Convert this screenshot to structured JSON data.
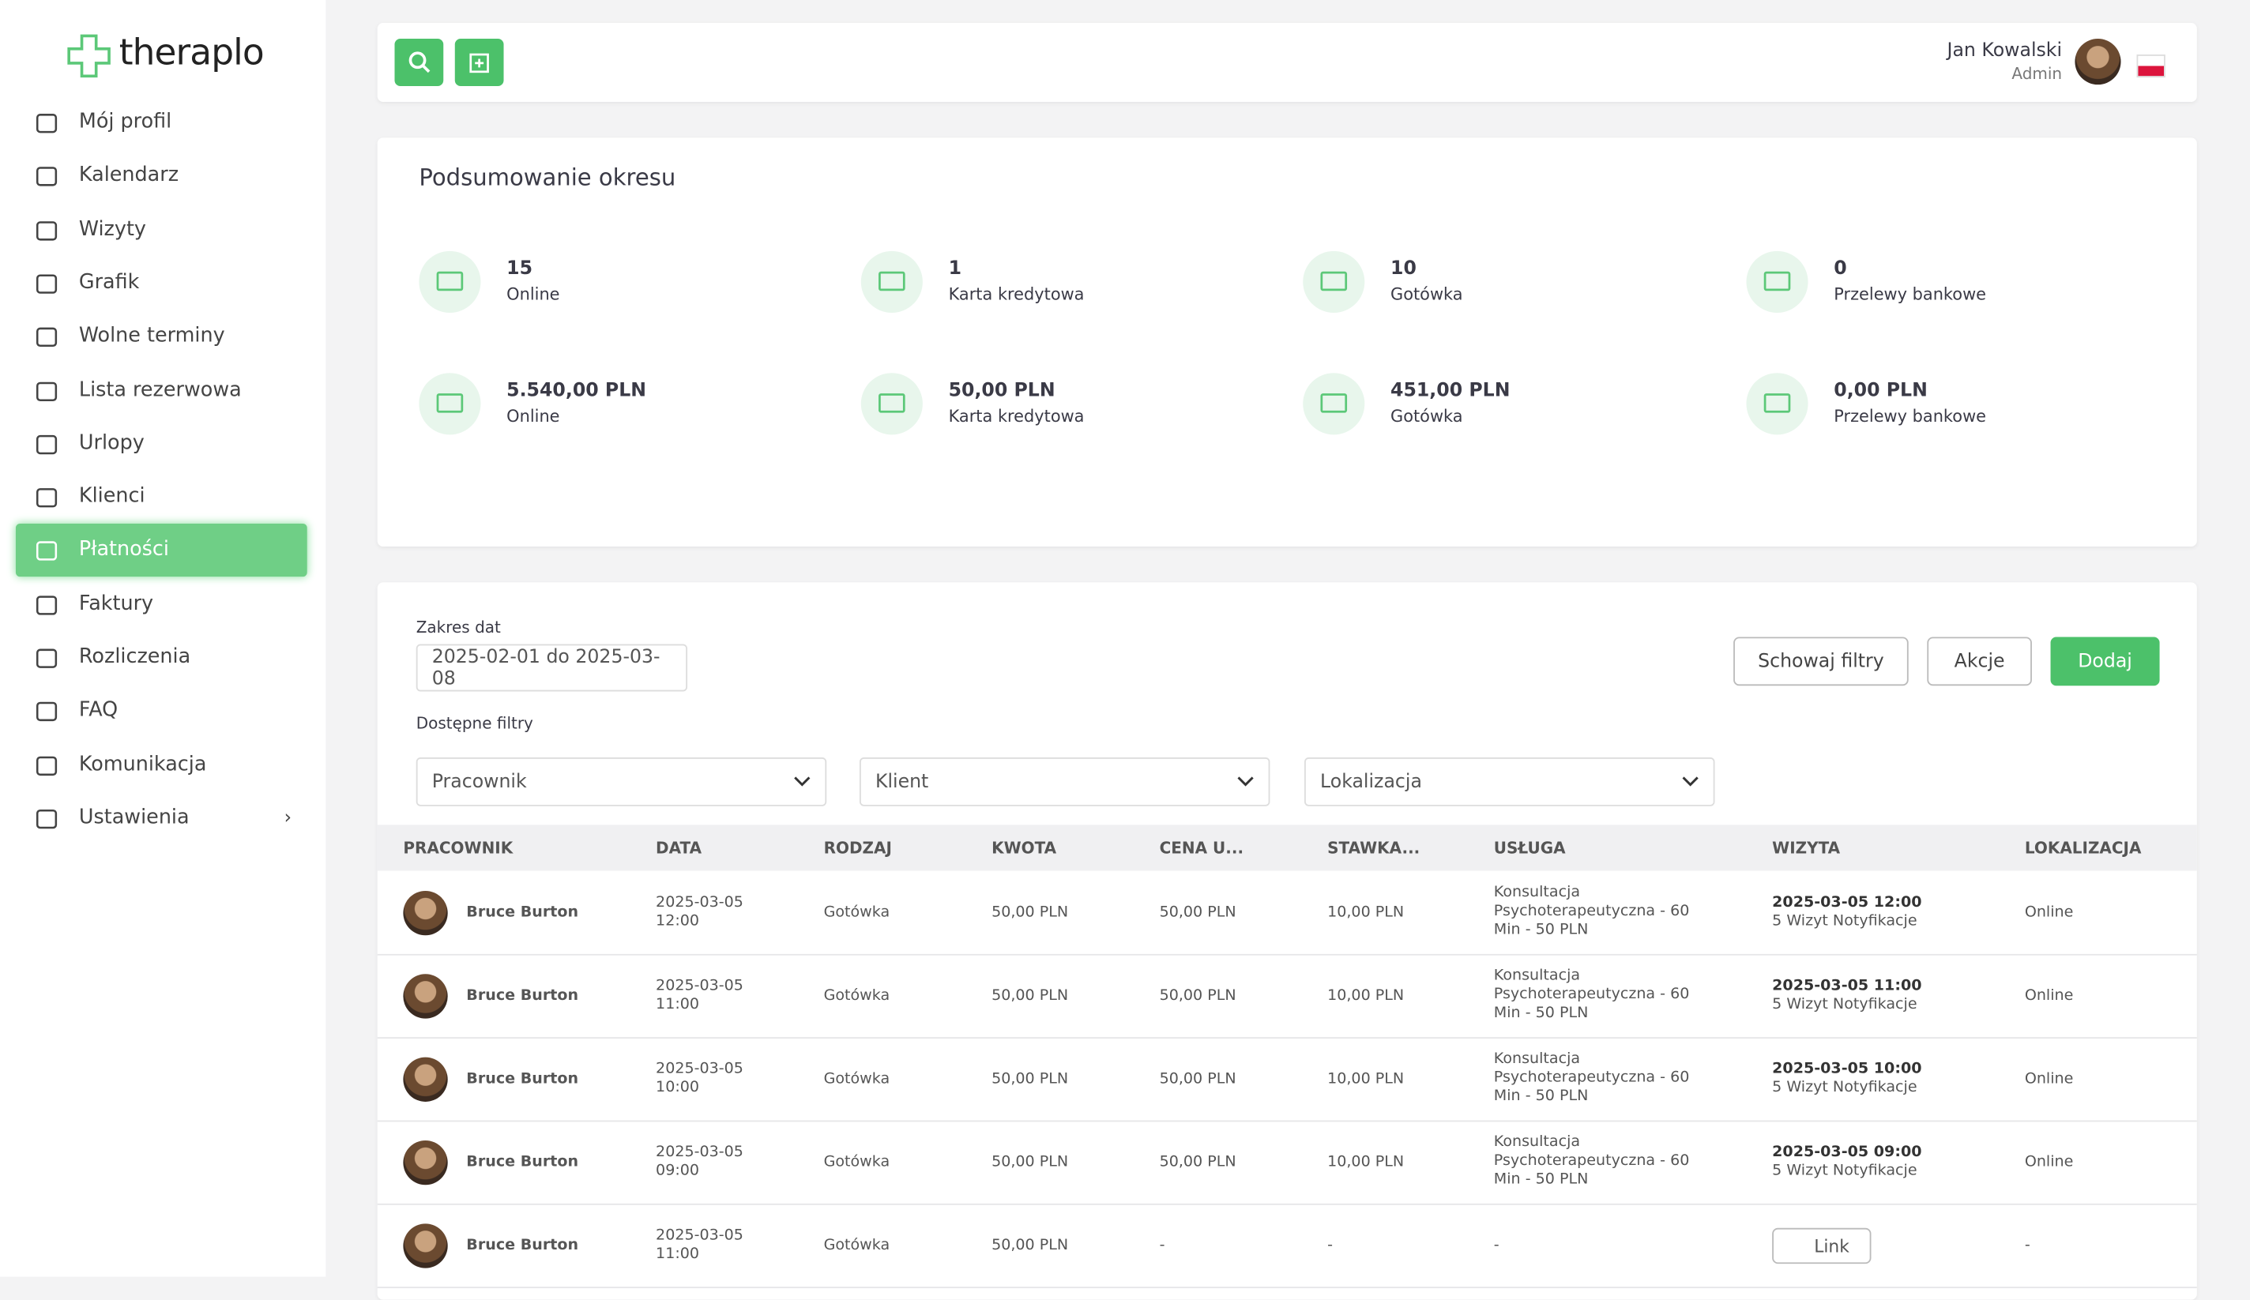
{
  "brand": "theraplo",
  "nav": [
    {
      "label": "Mój profil"
    },
    {
      "label": "Kalendarz"
    },
    {
      "label": "Wizyty"
    },
    {
      "label": "Grafik"
    },
    {
      "label": "Wolne terminy"
    },
    {
      "label": "Lista rezerwowa"
    },
    {
      "label": "Urlopy"
    },
    {
      "label": "Klienci"
    },
    {
      "label": "Płatności",
      "selected": true
    },
    {
      "label": "Faktury"
    },
    {
      "label": "Rozliczenia"
    },
    {
      "label": "FAQ"
    },
    {
      "label": "Komunikacja"
    },
    {
      "label": "Ustawienia",
      "submenu": true
    }
  ],
  "user": {
    "name": "Jan Kowalski",
    "role": "Admin"
  },
  "summary": {
    "title": "Podsumowanie okresu",
    "rows": [
      [
        {
          "value": "15",
          "label": "Online"
        },
        {
          "value": "1",
          "label": "Karta kredytowa"
        },
        {
          "value": "10",
          "label": "Gotówka"
        },
        {
          "value": "0",
          "label": "Przelewy bankowe"
        }
      ],
      [
        {
          "value": "5.540,00 PLN",
          "label": "Online"
        },
        {
          "value": "50,00 PLN",
          "label": "Karta kredytowa"
        },
        {
          "value": "451,00 PLN",
          "label": "Gotówka"
        },
        {
          "value": "0,00 PLN",
          "label": "Przelewy bankowe"
        }
      ]
    ]
  },
  "filters": {
    "date_label": "Zakres dat",
    "date_value": "2025-02-01 do 2025-03-08",
    "available_label": "Dostępne filtry",
    "selects": [
      "Pracownik",
      "Klient",
      "Lokalizacja"
    ],
    "buttons": [
      "Schowaj filtry",
      "Akcje",
      "Dodaj"
    ]
  },
  "table": {
    "headers": [
      "PRACOWNIK",
      "DATA",
      "RODZAJ",
      "KWOTA",
      "CENA U...",
      "STAWKA...",
      "USŁUGA",
      "WIZYTA",
      "LOKALIZACJA"
    ],
    "rows": [
      [
        "Bruce Burton",
        "2025-03-05 12:00",
        "Gotówka",
        "50,00 PLN",
        "50,00 PLN",
        "10,00 PLN",
        "Konsultacja Psychoterapeutyczna - 60 Min - 50 PLN",
        [
          "2025-03-05 12:00",
          "5 Wizyt Notyfikacje"
        ],
        "Online"
      ],
      [
        "Bruce Burton",
        "2025-03-05 11:00",
        "Gotówka",
        "50,00 PLN",
        "50,00 PLN",
        "10,00 PLN",
        "Konsultacja Psychoterapeutyczna - 60 Min - 50 PLN",
        [
          "2025-03-05 11:00",
          "5 Wizyt Notyfikacje"
        ],
        "Online"
      ],
      [
        "Bruce Burton",
        "2025-03-05 10:00",
        "Gotówka",
        "50,00 PLN",
        "50,00 PLN",
        "10,00 PLN",
        "Konsultacja Psychoterapeutyczna - 60 Min - 50 PLN",
        [
          "2025-03-05 10:00",
          "5 Wizyt Notyfikacje"
        ],
        "Online"
      ],
      [
        "Bruce Burton",
        "2025-03-05 09:00",
        "Gotówka",
        "50,00 PLN",
        "50,00 PLN",
        "10,00 PLN",
        "Konsultacja Psychoterapeutyczna - 60 Min - 50 PLN",
        [
          "2025-03-05 09:00",
          "5 Wizyt Notyfikacje"
        ],
        "Online"
      ],
      [
        "Bruce Burton",
        "2025-03-05 11:00",
        "Gotówka",
        "50,00 PLN",
        "-",
        "-",
        "-",
        {
          "link": "Link"
        },
        "-"
      ]
    ]
  }
}
